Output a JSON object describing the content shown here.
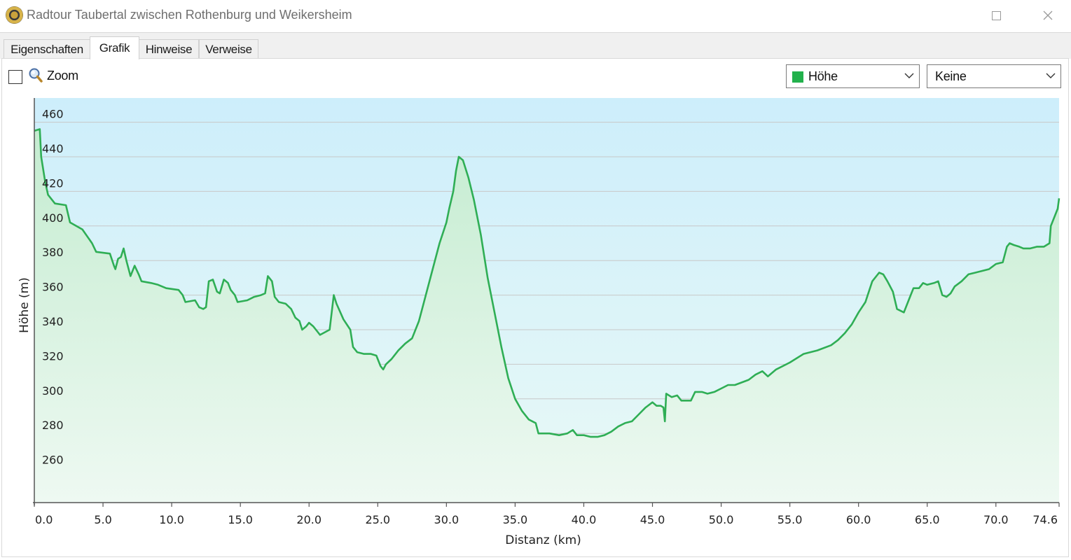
{
  "window": {
    "title": "Radtour Taubertal zwischen Rothenburg und Weikersheim",
    "icon": "app-logo-icon"
  },
  "tabs": [
    {
      "label": "Eigenschaften",
      "active": false
    },
    {
      "label": "Grafik",
      "active": true
    },
    {
      "label": "Hinweise",
      "active": false
    },
    {
      "label": "Verweise",
      "active": false
    }
  ],
  "toolbar": {
    "zoom_label": "Zoom",
    "zoom_checked": false,
    "series_select": {
      "value": "Höhe",
      "swatch_color": "#22b14c"
    },
    "compare_select": {
      "value": "Keine"
    }
  },
  "colors": {
    "line": "#2fae55",
    "sky_top": "#cdeefb",
    "sky_bottom": "#e9f9f6",
    "fill_top": "#c4ecd0",
    "fill_bottom": "#eef9f2",
    "grid": "#c8c8c8"
  },
  "chart_data": {
    "type": "area",
    "title": "",
    "xlabel": "Distanz  (km)",
    "ylabel": "Höhe (m)",
    "xlim": [
      0,
      74.6
    ],
    "ylim": [
      240,
      474
    ],
    "x_ticks": [
      {
        "v": 0,
        "label": "0.0"
      },
      {
        "v": 5,
        "label": "5.0"
      },
      {
        "v": 10,
        "label": "10.0"
      },
      {
        "v": 15,
        "label": "15.0"
      },
      {
        "v": 20,
        "label": "20.0"
      },
      {
        "v": 25,
        "label": "25.0"
      },
      {
        "v": 30,
        "label": "30.0"
      },
      {
        "v": 35,
        "label": "35.0"
      },
      {
        "v": 40,
        "label": "40.0"
      },
      {
        "v": 45,
        "label": "45.0"
      },
      {
        "v": 50,
        "label": "50.0"
      },
      {
        "v": 55,
        "label": "55.0"
      },
      {
        "v": 60,
        "label": "60.0"
      },
      {
        "v": 65,
        "label": "65.0"
      },
      {
        "v": 70,
        "label": "70.0"
      },
      {
        "v": 74.6,
        "label": "74.6"
      }
    ],
    "y_ticks": [
      {
        "v": 260,
        "label": "260"
      },
      {
        "v": 280,
        "label": "280"
      },
      {
        "v": 300,
        "label": "300"
      },
      {
        "v": 320,
        "label": "320"
      },
      {
        "v": 340,
        "label": "340"
      },
      {
        "v": 360,
        "label": "360"
      },
      {
        "v": 380,
        "label": "380"
      },
      {
        "v": 400,
        "label": "400"
      },
      {
        "v": 420,
        "label": "420"
      },
      {
        "v": 440,
        "label": "440"
      },
      {
        "v": 460,
        "label": "460"
      }
    ],
    "grid": true,
    "series": [
      {
        "name": "Höhe",
        "color": "#2fae55",
        "points": [
          [
            0,
            455
          ],
          [
            0.4,
            456
          ],
          [
            0.5,
            440
          ],
          [
            0.8,
            425
          ],
          [
            1.0,
            418
          ],
          [
            1.5,
            413
          ],
          [
            2.3,
            412
          ],
          [
            2.6,
            402
          ],
          [
            3.5,
            398
          ],
          [
            4.2,
            390
          ],
          [
            4.5,
            385
          ],
          [
            5.5,
            384
          ],
          [
            5.8,
            377
          ],
          [
            5.9,
            375
          ],
          [
            6.1,
            381
          ],
          [
            6.3,
            382
          ],
          [
            6.5,
            387
          ],
          [
            6.7,
            380
          ],
          [
            7.0,
            371
          ],
          [
            7.3,
            377
          ],
          [
            7.6,
            372
          ],
          [
            7.8,
            368
          ],
          [
            8.5,
            367
          ],
          [
            9.0,
            366
          ],
          [
            9.6,
            364
          ],
          [
            10.5,
            363
          ],
          [
            10.8,
            360
          ],
          [
            11.0,
            356
          ],
          [
            11.7,
            357
          ],
          [
            12.0,
            353
          ],
          [
            12.3,
            352
          ],
          [
            12.5,
            353
          ],
          [
            12.7,
            368
          ],
          [
            13.0,
            369
          ],
          [
            13.3,
            362
          ],
          [
            13.5,
            361
          ],
          [
            13.8,
            369
          ],
          [
            14.1,
            367
          ],
          [
            14.3,
            363
          ],
          [
            14.6,
            360
          ],
          [
            14.8,
            356
          ],
          [
            15.5,
            357
          ],
          [
            16.0,
            359
          ],
          [
            16.5,
            360
          ],
          [
            16.8,
            361
          ],
          [
            17.0,
            371
          ],
          [
            17.3,
            368
          ],
          [
            17.5,
            359
          ],
          [
            17.8,
            356
          ],
          [
            18.3,
            355
          ],
          [
            18.7,
            352
          ],
          [
            19.0,
            347
          ],
          [
            19.3,
            345
          ],
          [
            19.5,
            340
          ],
          [
            19.8,
            342
          ],
          [
            20.0,
            344
          ],
          [
            20.3,
            342
          ],
          [
            20.6,
            339
          ],
          [
            20.8,
            337
          ],
          [
            21.5,
            340
          ],
          [
            21.8,
            360
          ],
          [
            22.0,
            355
          ],
          [
            22.5,
            346
          ],
          [
            23.0,
            340
          ],
          [
            23.2,
            330
          ],
          [
            23.5,
            327
          ],
          [
            24.0,
            326
          ],
          [
            24.5,
            326
          ],
          [
            24.9,
            325
          ],
          [
            25.2,
            319
          ],
          [
            25.4,
            317
          ],
          [
            25.6,
            320
          ],
          [
            26.0,
            323
          ],
          [
            26.5,
            328
          ],
          [
            27.0,
            332
          ],
          [
            27.5,
            335
          ],
          [
            28.0,
            345
          ],
          [
            28.5,
            360
          ],
          [
            29.0,
            375
          ],
          [
            29.5,
            390
          ],
          [
            30.0,
            402
          ],
          [
            30.2,
            410
          ],
          [
            30.5,
            420
          ],
          [
            30.7,
            432
          ],
          [
            30.9,
            440
          ],
          [
            31.2,
            438
          ],
          [
            31.6,
            428
          ],
          [
            32.0,
            415
          ],
          [
            32.5,
            395
          ],
          [
            33.0,
            370
          ],
          [
            33.5,
            350
          ],
          [
            34.0,
            330
          ],
          [
            34.5,
            312
          ],
          [
            35.0,
            300
          ],
          [
            35.5,
            293
          ],
          [
            36.0,
            288
          ],
          [
            36.5,
            286
          ],
          [
            36.7,
            280
          ],
          [
            37.5,
            280
          ],
          [
            38.2,
            279
          ],
          [
            38.8,
            280
          ],
          [
            39.2,
            282
          ],
          [
            39.5,
            279
          ],
          [
            40.0,
            279
          ],
          [
            40.5,
            278
          ],
          [
            41.0,
            278
          ],
          [
            41.5,
            279
          ],
          [
            42.0,
            281
          ],
          [
            42.5,
            284
          ],
          [
            43.0,
            286
          ],
          [
            43.5,
            287
          ],
          [
            44.0,
            291
          ],
          [
            44.5,
            295
          ],
          [
            45.0,
            298
          ],
          [
            45.3,
            296
          ],
          [
            45.6,
            296
          ],
          [
            45.8,
            295
          ],
          [
            45.9,
            287
          ],
          [
            46.0,
            303
          ],
          [
            46.4,
            301
          ],
          [
            46.8,
            302
          ],
          [
            47.1,
            299
          ],
          [
            47.8,
            299
          ],
          [
            48.1,
            304
          ],
          [
            48.6,
            304
          ],
          [
            49.0,
            303
          ],
          [
            49.5,
            304
          ],
          [
            50.0,
            306
          ],
          [
            50.5,
            308
          ],
          [
            51.0,
            308
          ],
          [
            52.0,
            311
          ],
          [
            52.5,
            314
          ],
          [
            53.0,
            316
          ],
          [
            53.4,
            313
          ],
          [
            54.0,
            317
          ],
          [
            55.0,
            321
          ],
          [
            56.0,
            326
          ],
          [
            57.0,
            328
          ],
          [
            58.0,
            331
          ],
          [
            58.5,
            334
          ],
          [
            59.0,
            338
          ],
          [
            59.5,
            343
          ],
          [
            60.0,
            350
          ],
          [
            60.5,
            356
          ],
          [
            61.0,
            368
          ],
          [
            61.5,
            373
          ],
          [
            61.8,
            372
          ],
          [
            62.1,
            368
          ],
          [
            62.5,
            362
          ],
          [
            62.8,
            352
          ],
          [
            63.3,
            350
          ],
          [
            63.7,
            358
          ],
          [
            64.0,
            364
          ],
          [
            64.4,
            364
          ],
          [
            64.7,
            367
          ],
          [
            65.0,
            366
          ],
          [
            65.5,
            367
          ],
          [
            65.8,
            368
          ],
          [
            66.1,
            360
          ],
          [
            66.4,
            359
          ],
          [
            66.7,
            361
          ],
          [
            67.0,
            365
          ],
          [
            67.5,
            368
          ],
          [
            68.0,
            372
          ],
          [
            68.5,
            373
          ],
          [
            69.0,
            374
          ],
          [
            69.5,
            375
          ],
          [
            70.0,
            378
          ],
          [
            70.5,
            379
          ],
          [
            70.8,
            388
          ],
          [
            71.0,
            390
          ],
          [
            71.3,
            389
          ],
          [
            71.7,
            388
          ],
          [
            72.0,
            387
          ],
          [
            72.5,
            387
          ],
          [
            73.0,
            388
          ],
          [
            73.5,
            388
          ],
          [
            73.9,
            390
          ],
          [
            74.0,
            400
          ],
          [
            74.3,
            406
          ],
          [
            74.5,
            410
          ],
          [
            74.6,
            416
          ]
        ]
      }
    ]
  }
}
